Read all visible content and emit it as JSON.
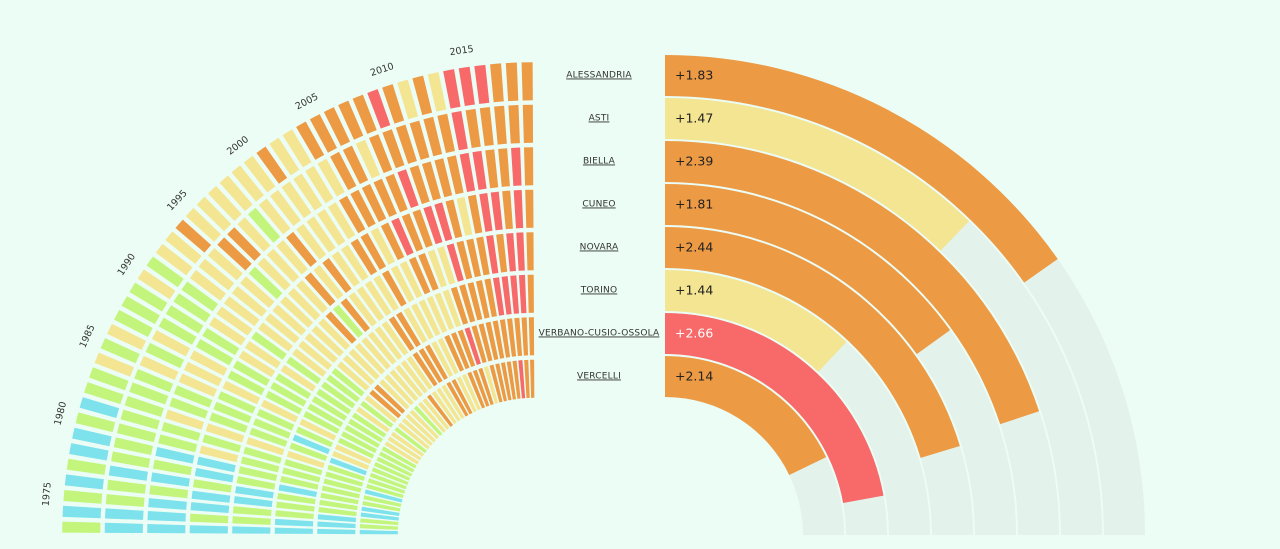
{
  "colors": {
    "background": "#ecfdf5",
    "track": "#e3f2ea",
    "scale": {
      "cyan": "#7de2ec",
      "green": "#c3f57c",
      "yellow": "#f3e591",
      "orange": "#ec9a44",
      "red": "#f8696a"
    }
  },
  "chart_data": [
    {
      "type": "radial-heatmap",
      "rings": 8,
      "year_labels": [
        "1975",
        "1980",
        "1985",
        "1990",
        "1995",
        "2000",
        "2005",
        "2010",
        "2015"
      ],
      "years": {
        "start": 1973,
        "end": 2019
      },
      "note_scale": "cyan < green < yellow < orange < red"
    },
    {
      "type": "radial-bar",
      "categories": [
        "ALESSANDRIA",
        "ASTI",
        "BIELLA",
        "CUNEO",
        "NOVARA",
        "TORINO",
        "VERBANO-CUSIO-OSSOLA",
        "VERCELLI"
      ],
      "values": [
        1.83,
        1.47,
        2.39,
        1.81,
        2.44,
        1.44,
        2.66,
        2.14
      ],
      "labels": [
        "+1.83",
        "+1.47",
        "+2.39",
        "+1.81",
        "+2.44",
        "+1.44",
        "+2.66",
        "+2.14"
      ],
      "max": 3.0
    }
  ]
}
